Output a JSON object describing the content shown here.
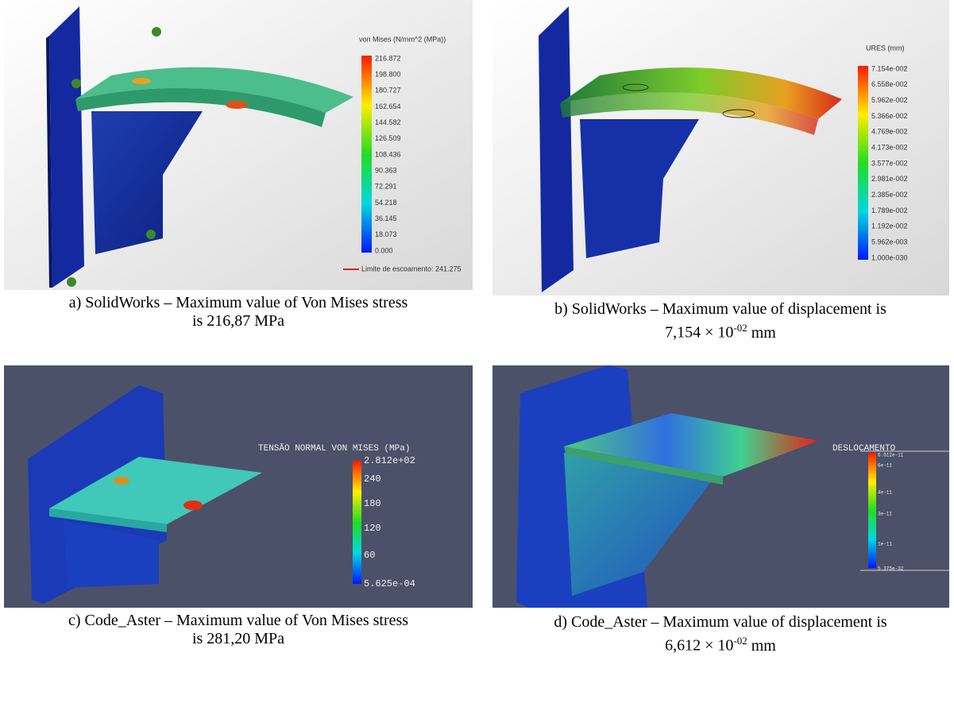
{
  "panels": [
    {
      "legend": {
        "title": "von Mises (N/mm^2 (MPa))",
        "labels": [
          "216.872",
          "198.800",
          "180.727",
          "162.654",
          "144.582",
          "126.509",
          "108.436",
          "90.363",
          "72.291",
          "54.218",
          "36.145",
          "18.073",
          "0.000"
        ],
        "note": "Limite de escoamento: 241.275"
      },
      "caption": {
        "line1": "a) SolidWorks – Maximum value of Von Mises stress",
        "line2": "is 216,87 MPa"
      }
    },
    {
      "legend": {
        "title": "URES (mm)",
        "labels": [
          "7.154e-002",
          "6.558e-002",
          "5.962e-002",
          "5.366e-002",
          "4.769e-002",
          "4.173e-002",
          "3.577e-002",
          "2.981e-002",
          "2.385e-002",
          "1.789e-002",
          "1.192e-002",
          "5.962e-003",
          "1.000e-030"
        ]
      },
      "caption": {
        "line1": "b) SolidWorks – Maximum value of displacement is",
        "line2": "7,154 × 10",
        "sup": "-02",
        "unit": "mm"
      }
    },
    {
      "legend": {
        "title": "TENSÃO NORMAL VON MISES (MPa)",
        "labels": [
          "2.812e+02",
          "240",
          "180",
          "120",
          "60",
          "5.625e-04"
        ]
      },
      "caption": {
        "line1": "c) Code_Aster – Maximum value of Von Mises stress",
        "line2": "is 281,20 MPa"
      }
    },
    {
      "legend": {
        "title": "DESLOCAMENTO",
        "labels": [
          "6.612e-11",
          "6e-11",
          "4e-11",
          "3e-11",
          "1e-11",
          "5.375e-32"
        ]
      },
      "caption": {
        "line1": "d) Code_Aster – Maximum value of displacement is",
        "line2": "6,612 × 10",
        "sup": "-02",
        "unit": "mm"
      }
    }
  ]
}
